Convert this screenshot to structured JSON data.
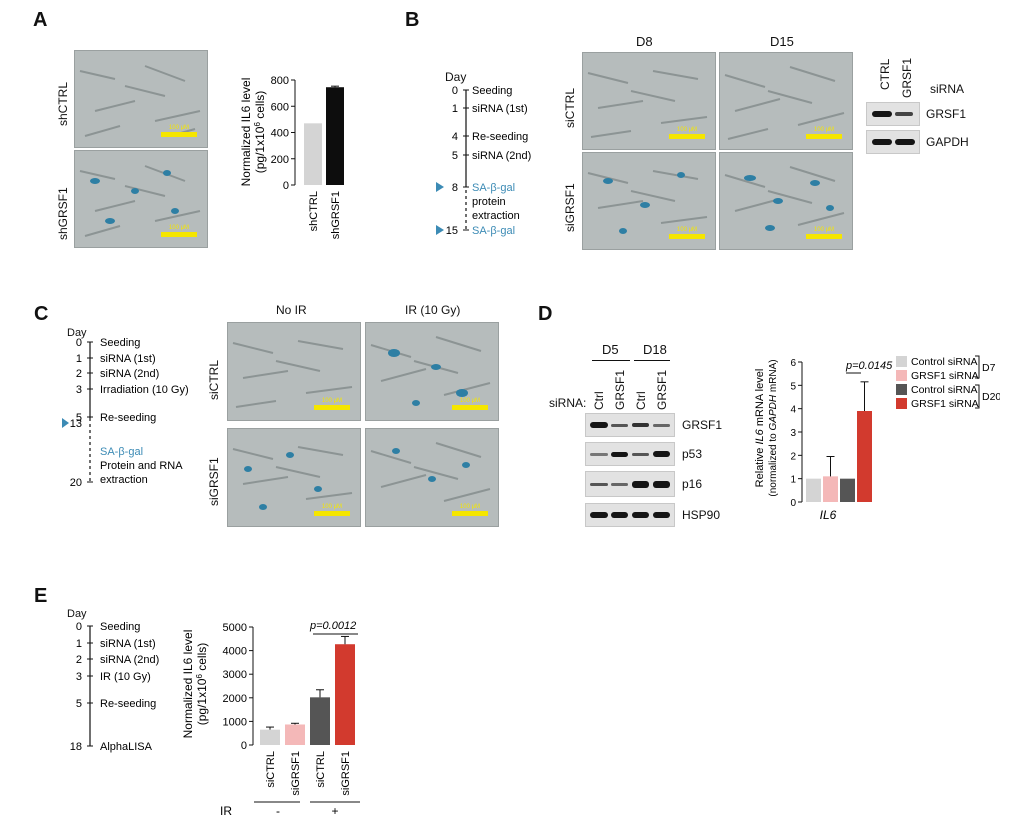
{
  "panels": {
    "A": {
      "label": "A",
      "rows": [
        "shCTRL",
        "shGRSF1"
      ],
      "scale_text": "100 μM",
      "chart": {
        "ylabel_line1": "Normalized IL6 level",
        "ylabel_line2_pre": "(pg/1x10",
        "ylabel_line2_sup": "6",
        "ylabel_line2_post": " cells)",
        "yticks": [
          "0",
          "200",
          "400",
          "600",
          "800"
        ],
        "xticks": [
          "shCTRL",
          "shGRSF1"
        ]
      }
    },
    "B": {
      "label": "B",
      "timeline_title": "Day",
      "timeline": [
        {
          "day": "0",
          "event": "Seeding"
        },
        {
          "day": "1",
          "event": "siRNA (1st)"
        },
        {
          "day": "4",
          "event": "Re-seeding"
        },
        {
          "day": "5",
          "event": "siRNA (2nd)"
        },
        {
          "day": "8",
          "event": "SA-β-gal",
          "extra1": "protein",
          "extra2": "extraction"
        },
        {
          "day": "15",
          "event": "SA-β-gal"
        }
      ],
      "cols": [
        "D8",
        "D15"
      ],
      "rows": [
        "siCTRL",
        "siGRSF1"
      ],
      "scale_text": "100 μM",
      "blot": {
        "lanes": [
          "CTRL",
          "GRSF1"
        ],
        "lanes_label": "siRNA",
        "proteins": [
          "GRSF1",
          "GAPDH"
        ]
      }
    },
    "C": {
      "label": "C",
      "timeline_title": "Day",
      "timeline": [
        {
          "day": "0",
          "event": "Seeding"
        },
        {
          "day": "1",
          "event": "siRNA (1st)"
        },
        {
          "day": "2",
          "event": "siRNA (2nd)"
        },
        {
          "day": "3",
          "event": "Irradiation (10 Gy)"
        },
        {
          "day": "5",
          "event": "Re-seeding"
        },
        {
          "day": "13",
          "event": "SA-β-gal",
          "extra1": "Protein and RNA",
          "extra2": "extraction"
        },
        {
          "day": "20",
          "event": ""
        }
      ],
      "cols": [
        "No IR",
        "IR (10 Gy)"
      ],
      "rows": [
        "siCTRL",
        "siGRSF1"
      ],
      "scale_text": "100 μM"
    },
    "D": {
      "label": "D",
      "blot": {
        "groups": [
          "D5",
          "D18"
        ],
        "sirna_label": "siRNA:",
        "lanes": [
          "Ctrl",
          "GRSF1",
          "Ctrl",
          "GRSF1"
        ],
        "proteins": [
          "GRSF1",
          "p53",
          "p16",
          "HSP90"
        ]
      },
      "chart": {
        "ylabel_line1_pre": "Relative ",
        "ylabel_line1_it": "IL6",
        "ylabel_line1_post": " mRNA level",
        "ylabel_line2_pre": "(normalized to ",
        "ylabel_line2_it": "GAPDH",
        "ylabel_line2_post": " mRNA)",
        "yticks": [
          "0",
          "1",
          "2",
          "3",
          "4",
          "5",
          "6"
        ],
        "xlabel": "IL6",
        "pvalue": "p=0.0145",
        "legend": [
          "Control siRNA",
          "GRSF1 siRNA",
          "Control siRNA",
          "GRSF1 siRNA"
        ],
        "legend_groups": [
          "D7",
          "D20"
        ]
      }
    },
    "E": {
      "label": "E",
      "timeline_title": "Day",
      "timeline": [
        {
          "day": "0",
          "event": "Seeding"
        },
        {
          "day": "1",
          "event": "siRNA (1st)"
        },
        {
          "day": "2",
          "event": "siRNA (2nd)"
        },
        {
          "day": "3",
          "event": "IR (10 Gy)"
        },
        {
          "day": "5",
          "event": "Re-seeding"
        },
        {
          "day": "18",
          "event": "AlphaLISA"
        }
      ],
      "chart": {
        "ylabel_line1": "Normalized IL6 level",
        "ylabel_line2_pre": "(pg/1x10",
        "ylabel_line2_sup": "6",
        "ylabel_line2_post": " cells)",
        "yticks": [
          "0",
          "1000",
          "2000",
          "3000",
          "4000",
          "5000"
        ],
        "xticks": [
          "siCTRL",
          "siGRSF1",
          "siCTRL",
          "siGRSF1"
        ],
        "ir_label": "IR",
        "ir_values": [
          "-",
          "+"
        ],
        "pvalue": "p=0.0012"
      }
    }
  },
  "colors": {
    "light_gray": "#d4d4d4",
    "black": "#0d0d0d",
    "pink": "#f4b8b8",
    "dark_gray": "#555555",
    "red": "#d23a2e",
    "blue_text": "#3c8bb5"
  },
  "chart_data": [
    {
      "type": "bar",
      "panel": "A",
      "categories": [
        "shCTRL",
        "shGRSF1"
      ],
      "values": [
        470,
        745
      ],
      "errors": [
        0,
        8
      ],
      "ylim": [
        0,
        800
      ],
      "ylabel": "Normalized IL6 level (pg/1x10^6 cells)"
    },
    {
      "type": "bar",
      "panel": "D",
      "categories": [
        "Control siRNA D7",
        "GRSF1 siRNA D7",
        "Control siRNA D20",
        "GRSF1 siRNA D20"
      ],
      "values": [
        1.0,
        1.1,
        1.0,
        3.9
      ],
      "errors": [
        0,
        0.85,
        0,
        1.25
      ],
      "ylim": [
        0,
        6
      ],
      "ylabel": "Relative IL6 mRNA level (normalized to GAPDH mRNA)",
      "xlabel": "IL6"
    },
    {
      "type": "bar",
      "panel": "E",
      "categories": [
        "siCTRL",
        "siGRSF1",
        "siCTRL",
        "siGRSF1"
      ],
      "values": [
        650,
        870,
        2020,
        4270
      ],
      "errors": [
        110,
        50,
        320,
        330
      ],
      "ylim": [
        0,
        5000
      ],
      "ylabel": "Normalized IL6 level (pg/1x10^6 cells)"
    }
  ]
}
